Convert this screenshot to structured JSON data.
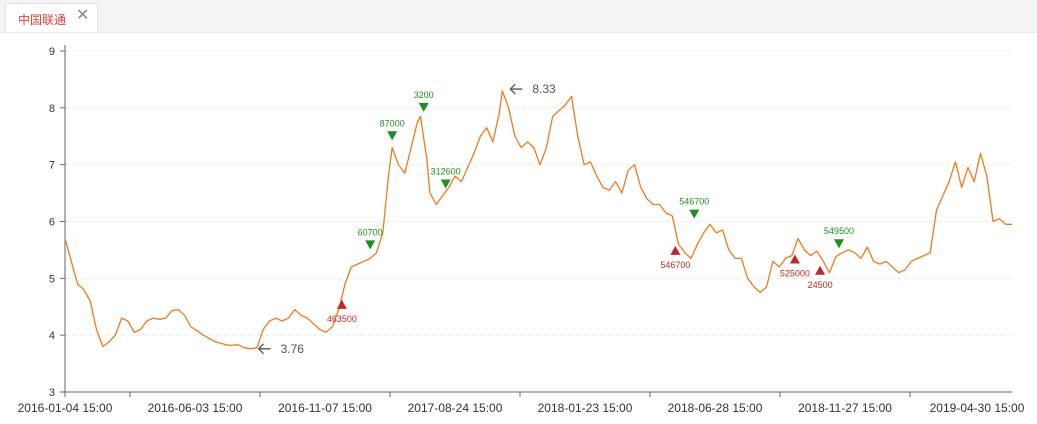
{
  "tabs": [
    {
      "label": "中国联通",
      "close_symbol": "✕"
    }
  ],
  "chart_data": {
    "type": "line",
    "ylim": [
      3,
      9
    ],
    "y_ticks": [
      "3",
      "4",
      "5",
      "6",
      "7",
      "8",
      "9"
    ],
    "x_tick_labels": [
      "2016-01-04 15:00",
      "2016-06-03 15:00",
      "2016-11-07 15:00",
      "2017-08-24 15:00",
      "2018-01-23 15:00",
      "2018-06-28 15:00",
      "2018-11-27 15:00",
      "2019-04-30 15:00"
    ],
    "grid": "horizontal-dashed",
    "series": [
      {
        "color": "#f07a1e",
        "points": [
          [
            0,
            5.7
          ],
          [
            2,
            5.3
          ],
          [
            4,
            4.9
          ],
          [
            6,
            4.8
          ],
          [
            8,
            4.6
          ],
          [
            10,
            4.1
          ],
          [
            12,
            3.8
          ],
          [
            14,
            3.88
          ],
          [
            16,
            4.0
          ],
          [
            18,
            4.3
          ],
          [
            20,
            4.25
          ],
          [
            22,
            4.05
          ],
          [
            24,
            4.1
          ],
          [
            26,
            4.25
          ],
          [
            28,
            4.3
          ],
          [
            30,
            4.28
          ],
          [
            32,
            4.3
          ],
          [
            34,
            4.43
          ],
          [
            36,
            4.45
          ],
          [
            38,
            4.35
          ],
          [
            40,
            4.15
          ],
          [
            44,
            4.0
          ],
          [
            48,
            3.88
          ],
          [
            52,
            3.82
          ],
          [
            55,
            3.83
          ],
          [
            57,
            3.78
          ],
          [
            59,
            3.76
          ],
          [
            61,
            3.78
          ],
          [
            63,
            4.1
          ],
          [
            65,
            4.25
          ],
          [
            67,
            4.3
          ],
          [
            69,
            4.25
          ],
          [
            71,
            4.3
          ],
          [
            73,
            4.45
          ],
          [
            75,
            4.35
          ],
          [
            77,
            4.3
          ],
          [
            79,
            4.2
          ],
          [
            81,
            4.1
          ],
          [
            83,
            4.05
          ],
          [
            85,
            4.15
          ],
          [
            87,
            4.45
          ],
          [
            89,
            4.9
          ],
          [
            91,
            5.2
          ],
          [
            93,
            5.25
          ],
          [
            95,
            5.3
          ],
          [
            97,
            5.35
          ],
          [
            99,
            5.45
          ],
          [
            101,
            5.8
          ],
          [
            103,
            6.9
          ],
          [
            104,
            7.3
          ],
          [
            106,
            7.0
          ],
          [
            108,
            6.85
          ],
          [
            110,
            7.3
          ],
          [
            112,
            7.75
          ],
          [
            113,
            7.85
          ],
          [
            115,
            7.1
          ],
          [
            116,
            6.5
          ],
          [
            118,
            6.3
          ],
          [
            120,
            6.45
          ],
          [
            122,
            6.6
          ],
          [
            124,
            6.8
          ],
          [
            126,
            6.7
          ],
          [
            128,
            6.95
          ],
          [
            130,
            7.2
          ],
          [
            132,
            7.5
          ],
          [
            134,
            7.65
          ],
          [
            136,
            7.4
          ],
          [
            138,
            7.9
          ],
          [
            139,
            8.3
          ],
          [
            141,
            8.0
          ],
          [
            143,
            7.5
          ],
          [
            145,
            7.3
          ],
          [
            147,
            7.4
          ],
          [
            149,
            7.3
          ],
          [
            151,
            7.0
          ],
          [
            153,
            7.3
          ],
          [
            155,
            7.85
          ],
          [
            157,
            7.95
          ],
          [
            159,
            8.05
          ],
          [
            161,
            8.2
          ],
          [
            163,
            7.5
          ],
          [
            165,
            7.0
          ],
          [
            167,
            7.05
          ],
          [
            169,
            6.8
          ],
          [
            171,
            6.6
          ],
          [
            173,
            6.55
          ],
          [
            175,
            6.7
          ],
          [
            177,
            6.5
          ],
          [
            179,
            6.9
          ],
          [
            181,
            7.0
          ],
          [
            183,
            6.6
          ],
          [
            185,
            6.4
          ],
          [
            187,
            6.3
          ],
          [
            189,
            6.3
          ],
          [
            191,
            6.15
          ],
          [
            193,
            6.1
          ],
          [
            195,
            5.6
          ],
          [
            197,
            5.45
          ],
          [
            199,
            5.35
          ],
          [
            201,
            5.6
          ],
          [
            203,
            5.8
          ],
          [
            205,
            5.95
          ],
          [
            207,
            5.8
          ],
          [
            209,
            5.85
          ],
          [
            211,
            5.5
          ],
          [
            213,
            5.35
          ],
          [
            215,
            5.35
          ],
          [
            217,
            5.0
          ],
          [
            219,
            4.85
          ],
          [
            221,
            4.75
          ],
          [
            223,
            4.85
          ],
          [
            225,
            5.3
          ],
          [
            227,
            5.2
          ],
          [
            229,
            5.35
          ],
          [
            231,
            5.4
          ],
          [
            233,
            5.7
          ],
          [
            235,
            5.5
          ],
          [
            237,
            5.4
          ],
          [
            239,
            5.48
          ],
          [
            241,
            5.3
          ],
          [
            243,
            5.1
          ],
          [
            245,
            5.38
          ],
          [
            247,
            5.45
          ],
          [
            249,
            5.5
          ],
          [
            251,
            5.45
          ],
          [
            253,
            5.35
          ],
          [
            255,
            5.55
          ],
          [
            257,
            5.3
          ],
          [
            259,
            5.25
          ],
          [
            261,
            5.3
          ],
          [
            263,
            5.2
          ],
          [
            265,
            5.1
          ],
          [
            267,
            5.15
          ],
          [
            269,
            5.3
          ],
          [
            271,
            5.35
          ],
          [
            273,
            5.4
          ],
          [
            275,
            5.45
          ],
          [
            277,
            6.2
          ],
          [
            279,
            6.45
          ],
          [
            281,
            6.7
          ],
          [
            283,
            7.05
          ],
          [
            285,
            6.6
          ],
          [
            287,
            6.95
          ],
          [
            289,
            6.7
          ],
          [
            291,
            7.2
          ],
          [
            293,
            6.8
          ],
          [
            295,
            6.0
          ],
          [
            297,
            6.05
          ],
          [
            299,
            5.95
          ],
          [
            301,
            5.95
          ]
        ]
      }
    ],
    "buy_markers": [
      {
        "label": "60700",
        "x": 97,
        "y": 5.58
      },
      {
        "label": "87000",
        "x": 104,
        "y": 7.5
      },
      {
        "label": "3200",
        "x": 114,
        "y": 8.0
      },
      {
        "label": "312600",
        "x": 121,
        "y": 6.65
      },
      {
        "label": "546700",
        "x": 200,
        "y": 6.12
      },
      {
        "label": "549500",
        "x": 246,
        "y": 5.6
      }
    ],
    "sell_markers": [
      {
        "label": "463500",
        "x": 88,
        "y": 4.55
      },
      {
        "label": "546700",
        "x": 194,
        "y": 5.5
      },
      {
        "label": "525000",
        "x": 232,
        "y": 5.35
      },
      {
        "label": "24500",
        "x": 240,
        "y": 5.15
      }
    ],
    "annotations": [
      {
        "label": "3.76",
        "x": 59,
        "y": 3.76
      },
      {
        "label": "8.33",
        "x": 139,
        "y": 8.33
      }
    ]
  }
}
